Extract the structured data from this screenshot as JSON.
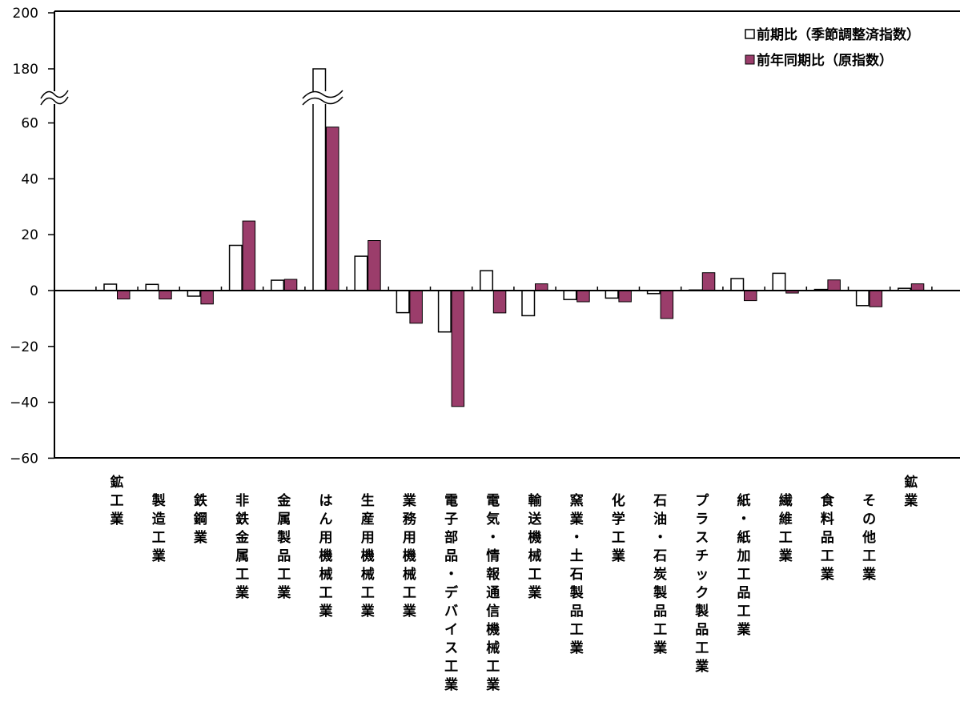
{
  "chart_data": {
    "type": "bar",
    "categories": [
      "鉱工業",
      "製造工業",
      "鉄鋼業",
      "非鉄金属工業",
      "金属製品工業",
      "はん用機械工業",
      "生産用機械工業",
      "業務用機械工業",
      "電子部品・デバイス工業",
      "電気・情報通信機械工業",
      "輸送機械工業",
      "窯業・土石製品工業",
      "化学工業",
      "石油・石炭製品工業",
      "プラスチック製品工業",
      "紙・紙加工品工業",
      "繊維工業",
      "食料品工業",
      "その他工業",
      "鉱業"
    ],
    "series": [
      {
        "name": "前期比（季節調整済指数）",
        "values": [
          2.3,
          2.2,
          -2.0,
          16.2,
          3.7,
          180.0,
          12.3,
          -7.9,
          -14.8,
          7.1,
          -9.0,
          -3.2,
          -2.7,
          -1.1,
          0.2,
          4.3,
          6.2,
          0.4,
          -5.4,
          0.8
        ]
      },
      {
        "name": "前年同期比（原指数）",
        "values": [
          -3.0,
          -3.0,
          -4.8,
          24.9,
          4.0,
          58.5,
          17.9,
          -11.7,
          -41.5,
          -8.0,
          2.4,
          -4.0,
          -4.0,
          -10.0,
          6.4,
          -3.6,
          -0.9,
          3.8,
          -5.8,
          2.4
        ]
      }
    ],
    "y_ticks": [
      "200",
      "180",
      "60",
      "40",
      "20",
      "0",
      "-20",
      "-40",
      "-60"
    ],
    "ylim": [
      -60,
      200
    ],
    "axis_break": "between 60 and 180",
    "legend_position": "top-right",
    "colors": {
      "series1": "#ffffff",
      "series2": "#9b3d6b"
    },
    "grid": false
  }
}
